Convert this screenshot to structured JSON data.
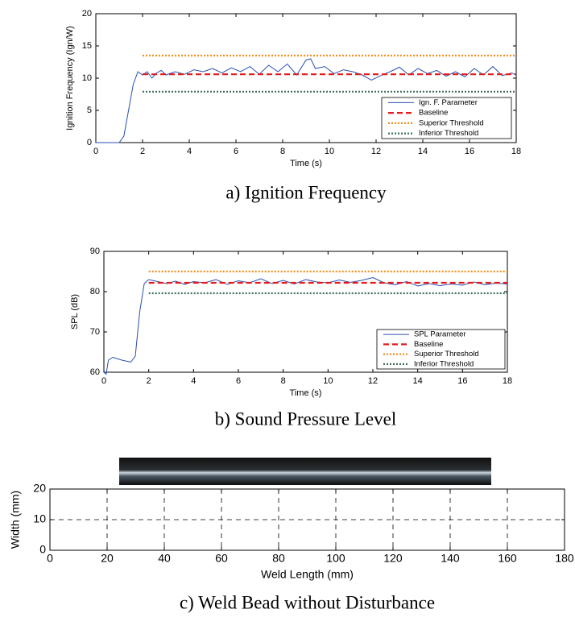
{
  "chart_data": [
    {
      "type": "line",
      "caption": "a) Ignition Frequency",
      "xlabel": "Time (s)",
      "ylabel": "Ignition Frequency (Ign/W)",
      "xlim": [
        0,
        18
      ],
      "xticks": [
        0,
        2,
        4,
        6,
        8,
        10,
        12,
        14,
        16,
        18
      ],
      "ylim": [
        0,
        20
      ],
      "yticks": [
        0,
        5,
        10,
        15,
        20
      ],
      "legend": "lower right",
      "series": [
        {
          "name": "Ign. F. Parameter",
          "color": "#2b4fb0",
          "style": "solid",
          "x": [
            0,
            1,
            1.2,
            1.4,
            1.6,
            1.8,
            2,
            2.2,
            2.4,
            2.6,
            2.8,
            3,
            3.4,
            3.8,
            4.2,
            4.6,
            5,
            5.4,
            5.8,
            6.2,
            6.6,
            7,
            7.4,
            7.8,
            8.2,
            8.6,
            9,
            9.2,
            9.4,
            9.8,
            10.2,
            10.6,
            11,
            11.4,
            11.8,
            12.2,
            12.6,
            13,
            13.4,
            13.8,
            14.2,
            14.6,
            15,
            15.4,
            15.8,
            16.2,
            16.6,
            17,
            17.4,
            17.8,
            18
          ],
          "values": [
            0,
            0,
            1,
            5,
            9,
            11,
            10.5,
            11,
            10,
            10.8,
            11.2,
            10.5,
            11,
            10.6,
            11.3,
            11,
            11.5,
            10.8,
            11.6,
            11,
            11.8,
            10.6,
            12,
            11,
            12.2,
            10.5,
            12.8,
            13,
            11.5,
            11.8,
            10.7,
            11.3,
            11,
            10.5,
            9.7,
            10.4,
            11,
            11.7,
            10.5,
            11.5,
            10.7,
            11.2,
            10.3,
            11,
            10.2,
            11.5,
            10.5,
            11.8,
            10.4,
            10.8,
            10.5
          ]
        },
        {
          "name": "Baseline",
          "color": "#e41a1c",
          "style": "dashed",
          "x": [
            2,
            18
          ],
          "values": [
            10.6,
            10.6
          ]
        },
        {
          "name": "Superior Threshold",
          "color": "#f28e1c",
          "style": "dotted",
          "x": [
            2,
            18
          ],
          "values": [
            13.5,
            13.5
          ]
        },
        {
          "name": "Inferior Threshold",
          "color": "#3f6f5f",
          "style": "dotted",
          "x": [
            2,
            18
          ],
          "values": [
            7.9,
            7.9
          ]
        }
      ]
    },
    {
      "type": "line",
      "caption": "b) Sound Pressure Level",
      "xlabel": "Time (s)",
      "ylabel": "SPL (dB)",
      "xlim": [
        0,
        18
      ],
      "xticks": [
        0,
        2,
        4,
        6,
        8,
        10,
        12,
        14,
        16,
        18
      ],
      "ylim": [
        60,
        90
      ],
      "yticks": [
        60,
        70,
        80,
        90
      ],
      "legend": "lower right",
      "series": [
        {
          "name": "SPL Parameter",
          "color": "#2b4fb0",
          "style": "solid",
          "x": [
            0,
            0.1,
            0.2,
            0.4,
            0.8,
            1.2,
            1.4,
            1.6,
            1.8,
            2,
            2.4,
            2.8,
            3.2,
            3.6,
            4,
            4.5,
            5,
            5.5,
            6,
            6.5,
            7,
            7.5,
            8,
            8.5,
            9,
            9.5,
            10,
            10.5,
            11,
            11.5,
            12,
            12.5,
            13,
            13.5,
            14,
            14.5,
            15,
            15.5,
            16,
            16.5,
            17,
            17.5,
            18
          ],
          "values": [
            60,
            59.5,
            63,
            63.7,
            63,
            62.5,
            64,
            75,
            82,
            83,
            82.5,
            82,
            82.6,
            81.8,
            82.5,
            82.2,
            83,
            81.8,
            82.7,
            82.2,
            83.2,
            82,
            82.8,
            81.9,
            83,
            82.4,
            82.2,
            82.9,
            82.3,
            82.8,
            83.5,
            82.2,
            81.7,
            82.5,
            81.4,
            82,
            81.5,
            81.9,
            81.6,
            82.4,
            81.7,
            82.1,
            81.9
          ]
        },
        {
          "name": "Baseline",
          "color": "#e41a1c",
          "style": "dashed",
          "x": [
            2,
            18
          ],
          "values": [
            82.2,
            82.2
          ]
        },
        {
          "name": "Superior Threshold",
          "color": "#f28e1c",
          "style": "dotted",
          "x": [
            2,
            18
          ],
          "values": [
            85,
            85
          ]
        },
        {
          "name": "Inferior Threshold",
          "color": "#3f6f5f",
          "style": "dotted",
          "x": [
            2,
            18
          ],
          "values": [
            79.6,
            79.6
          ]
        }
      ]
    },
    {
      "type": "line",
      "caption": "c) Weld Bead without Disturbance",
      "xlabel": "Weld Length (mm)",
      "ylabel": "Width (mm)",
      "xlim": [
        0,
        180
      ],
      "xticks": [
        0,
        20,
        40,
        60,
        80,
        100,
        120,
        140,
        160,
        180
      ],
      "ylim": [
        0,
        20
      ],
      "yticks": [
        0,
        10,
        20
      ],
      "grid": true
    }
  ]
}
